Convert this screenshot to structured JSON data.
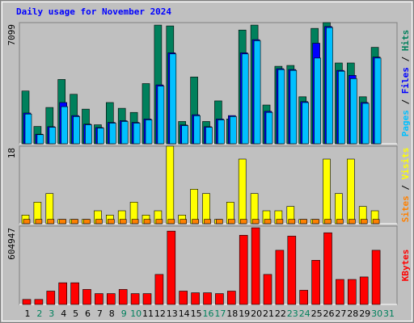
{
  "chart_data": [
    {
      "type": "bar",
      "title": "Daily usage for November 2024",
      "title_color": "#0000ff",
      "ylim": [
        0,
        7099
      ],
      "yticks": [
        7099
      ],
      "legend_separator": " / ",
      "series": [
        {
          "name": "Hits",
          "color": "#00805c",
          "values": [
            3091,
            1014,
            2125,
            3767,
            2898,
            2028,
            1111,
            2415,
            2077,
            1835,
            3525,
            6954,
            6906,
            1304,
            3912,
            1304,
            2511,
            1449,
            6664,
            6954,
            2270,
            4539,
            4588,
            2753,
            6761,
            7099,
            4733,
            4733,
            2753,
            5650,
            null
          ]
        },
        {
          "name": "Files",
          "color": "#0000ff",
          "values": [
            1800,
            560,
            1000,
            2415,
            1650,
            1150,
            950,
            1250,
            1350,
            1250,
            1450,
            3450,
            5330,
            1100,
            1700,
            1000,
            1450,
            1650,
            5330,
            6100,
            1900,
            4400,
            4350,
            2470,
            5892,
            6870,
            4300,
            4008,
            2420,
            5080,
            null
          ]
        },
        {
          "name": "Pages",
          "color": "#00c0ff",
          "values": [
            1739,
            531,
            966,
            2173,
            1594,
            1111,
            918,
            1207,
            1304,
            1207,
            1400,
            3380,
            5264,
            1062,
            1642,
            966,
            1400,
            1594,
            5264,
            6036,
            1835,
            4346,
            4298,
            2415,
            5022,
            6809,
            4250,
            3815,
            2366,
            5022,
            null
          ]
        }
      ]
    },
    {
      "type": "bar",
      "ylim": [
        0,
        18
      ],
      "yticks": [
        18
      ],
      "legend_separator": " / ",
      "series": [
        {
          "name": "Visits",
          "color": "#ffff00",
          "values": [
            2,
            5,
            7,
            1,
            1,
            1,
            3,
            2,
            3,
            5,
            2,
            3,
            18,
            2,
            8,
            7,
            1,
            5,
            15,
            7,
            3,
            3,
            4,
            1,
            1,
            15,
            7,
            15,
            4,
            3,
            null
          ]
        },
        {
          "name": "Sites",
          "color": "#ff8000",
          "values": [
            1,
            1,
            1,
            1,
            1,
            1,
            1,
            1,
            1,
            1,
            1,
            1,
            1,
            1,
            1,
            1,
            1,
            1,
            1,
            1,
            1,
            1,
            1,
            1,
            1,
            1,
            1,
            1,
            1,
            1,
            null
          ]
        }
      ]
    },
    {
      "type": "bar",
      "ylim": [
        0,
        604947
      ],
      "yticks": [
        604947
      ],
      "categories": [
        "1",
        "2",
        "3",
        "4",
        "5",
        "6",
        "7",
        "8",
        "9",
        "10",
        "11",
        "12",
        "13",
        "14",
        "15",
        "16",
        "17",
        "18",
        "19",
        "20",
        "21",
        "22",
        "23",
        "24",
        "25",
        "26",
        "27",
        "28",
        "29",
        "30",
        "31"
      ],
      "category_colors": [
        "#000000",
        "#00805c",
        "#00805c",
        "#000000",
        "#000000",
        "#000000",
        "#000000",
        "#000000",
        "#00805c",
        "#00805c",
        "#000000",
        "#000000",
        "#000000",
        "#000000",
        "#000000",
        "#00805c",
        "#00805c",
        "#000000",
        "#000000",
        "#000000",
        "#000000",
        "#000000",
        "#00805c",
        "#00805c",
        "#000000",
        "#000000",
        "#000000",
        "#000000",
        "#000000",
        "#00805c",
        "#00805c"
      ],
      "series": [
        {
          "name": "KBytes",
          "color": "#ff0000",
          "values": [
            38614,
            38614,
            102970,
            167326,
            167326,
            115840,
            83662,
            83662,
            115840,
            83662,
            83662,
            231682,
            566335,
            102970,
            90100,
            90100,
            83662,
            102970,
            534155,
            592076,
            231682,
            418314,
            527719,
            109405,
            341087,
            553464,
            193068,
            193068,
            212375,
            418314,
            null
          ]
        }
      ]
    }
  ]
}
